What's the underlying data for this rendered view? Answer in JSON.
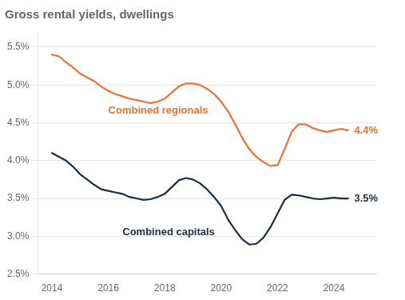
{
  "chart_data": {
    "type": "line",
    "title": "Gross rental yields, dwellings",
    "x": [
      2014.0,
      2014.25,
      2014.5,
      2014.75,
      2015.0,
      2015.25,
      2015.5,
      2015.75,
      2016.0,
      2016.25,
      2016.5,
      2016.75,
      2017.0,
      2017.25,
      2017.5,
      2017.75,
      2018.0,
      2018.25,
      2018.5,
      2018.75,
      2019.0,
      2019.25,
      2019.5,
      2019.75,
      2020.0,
      2020.25,
      2020.5,
      2020.75,
      2021.0,
      2021.25,
      2021.5,
      2021.75,
      2022.0,
      2022.25,
      2022.5,
      2022.75,
      2023.0,
      2023.25,
      2023.5,
      2023.75,
      2024.0,
      2024.25,
      2024.5
    ],
    "series": [
      {
        "name": "Combined regionals",
        "color": "#F07030",
        "values": [
          0.054,
          0.0538,
          0.053,
          0.0523,
          0.0515,
          0.051,
          0.0505,
          0.0498,
          0.0492,
          0.0488,
          0.0485,
          0.0482,
          0.048,
          0.0478,
          0.0476,
          0.0478,
          0.0482,
          0.049,
          0.0498,
          0.0502,
          0.0502,
          0.05,
          0.0495,
          0.0488,
          0.0478,
          0.0465,
          0.0448,
          0.043,
          0.0415,
          0.0405,
          0.0398,
          0.0393,
          0.0394,
          0.0415,
          0.0438,
          0.0448,
          0.0448,
          0.0443,
          0.044,
          0.0438,
          0.044,
          0.0442,
          0.044
        ]
      },
      {
        "name": "Combined capitals",
        "color": "#1C2E3D",
        "values": [
          0.041,
          0.0405,
          0.04,
          0.0392,
          0.0382,
          0.0375,
          0.0368,
          0.0362,
          0.036,
          0.0358,
          0.0356,
          0.0352,
          0.035,
          0.0348,
          0.0349,
          0.0352,
          0.0356,
          0.0365,
          0.0374,
          0.0377,
          0.0375,
          0.037,
          0.0362,
          0.0352,
          0.034,
          0.0322,
          0.0308,
          0.0296,
          0.0289,
          0.029,
          0.0298,
          0.0312,
          0.033,
          0.0348,
          0.0355,
          0.0354,
          0.0352,
          0.035,
          0.0349,
          0.035,
          0.0351,
          0.035,
          0.035
        ]
      }
    ],
    "xlim": [
      2013.5,
      2025.5
    ],
    "xticks": [
      2014,
      2016,
      2018,
      2020,
      2022,
      2024
    ],
    "ylim": [
      0.025,
      0.057
    ],
    "yticks": [
      {
        "value": 0.025,
        "label": "2.5%"
      },
      {
        "value": 0.03,
        "label": "3.0%"
      },
      {
        "value": 0.035,
        "label": "3.5%"
      },
      {
        "value": 0.04,
        "label": "4.0%"
      },
      {
        "value": 0.045,
        "label": "4.5%"
      },
      {
        "value": 0.05,
        "label": "5.0%"
      },
      {
        "value": 0.055,
        "label": "5.5%"
      }
    ],
    "grid": "y",
    "annotations": [
      {
        "text": "Combined regionals",
        "x": 2016.0,
        "y": 0.0466,
        "color": "#F07030"
      },
      {
        "text": "Combined capitals",
        "x": 2016.5,
        "y": 0.0305,
        "color": "#1C2E3D"
      },
      {
        "text": "4.4%",
        "x": 2024.72,
        "y": 0.044,
        "color": "#F07030"
      },
      {
        "text": "3.5%",
        "x": 2024.72,
        "y": 0.035,
        "color": "#1C2E3D"
      }
    ]
  }
}
